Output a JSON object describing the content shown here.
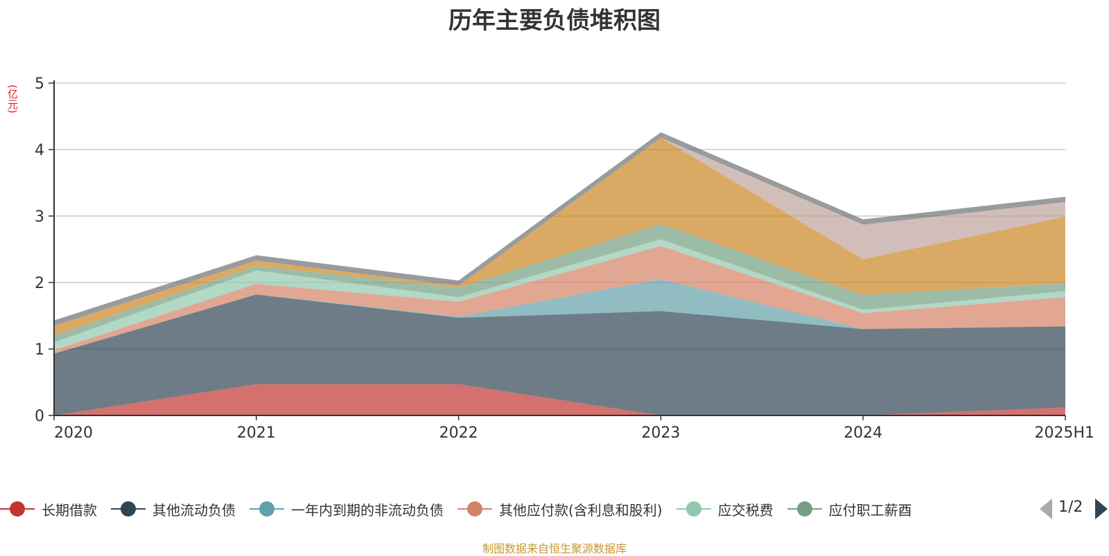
{
  "unit_label": "(亿元)",
  "source": "制图数据来自恒生聚源数据库",
  "legend_pager": {
    "text": "1/2",
    "prev_icon": "triangle-left-icon",
    "next_icon": "triangle-right-icon"
  },
  "chart_data": {
    "type": "area",
    "title": "历年主要负债堆积图",
    "stacked": true,
    "categories": [
      "2020",
      "2021",
      "2022",
      "2023",
      "2024",
      "2025H1"
    ],
    "ylim": [
      0,
      5
    ],
    "yticks": [
      0,
      1,
      2,
      3,
      4,
      5
    ],
    "grid": true,
    "legend_position": "bottom",
    "series": [
      {
        "name": "长期借款",
        "color": "#c23531",
        "values": [
          0.0,
          0.47,
          0.47,
          0.0,
          0.0,
          0.12
        ],
        "in_legend_page": true
      },
      {
        "name": "其他流动负债",
        "color": "#2f4554",
        "values": [
          0.93,
          1.35,
          1.0,
          1.57,
          1.3,
          1.22
        ],
        "in_legend_page": true
      },
      {
        "name": "一年内到期的非流动负债",
        "color": "#61a0a8",
        "values": [
          0.0,
          0.0,
          0.02,
          0.48,
          0.0,
          0.0
        ],
        "in_legend_page": true
      },
      {
        "name": "其他应付款(含利息和股利)",
        "color": "#d48265",
        "values": [
          0.05,
          0.16,
          0.22,
          0.5,
          0.24,
          0.44
        ],
        "in_legend_page": true
      },
      {
        "name": "应交税费",
        "color": "#91c7ae",
        "values": [
          0.12,
          0.2,
          0.07,
          0.1,
          0.05,
          0.09
        ],
        "in_legend_page": true
      },
      {
        "name": "应付职工薪酬",
        "legend_label": "应付职工薪酉",
        "color": "#749f83",
        "values": [
          0.1,
          0.07,
          0.14,
          0.23,
          0.22,
          0.12
        ],
        "in_legend_page": true
      },
      {
        "name": "",
        "color": "#ca8622",
        "values": [
          0.15,
          0.08,
          0.03,
          1.3,
          0.54,
          1.0
        ],
        "in_legend_page": false
      },
      {
        "name": "",
        "color": "#bda29a",
        "values": [
          0.0,
          0.0,
          0.0,
          0.0,
          0.52,
          0.22
        ],
        "in_legend_page": false
      },
      {
        "name": "",
        "color": "#6e7074",
        "values": [
          0.08,
          0.08,
          0.08,
          0.08,
          0.08,
          0.08
        ],
        "in_legend_page": false
      }
    ]
  }
}
